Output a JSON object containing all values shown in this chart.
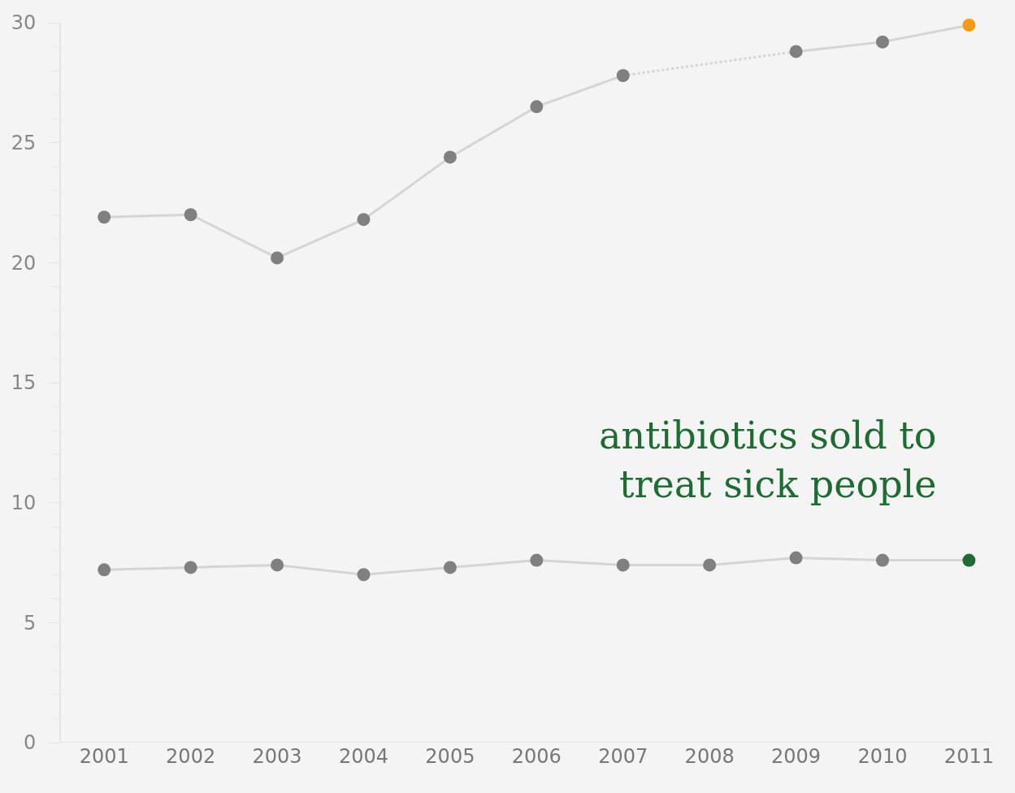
{
  "chart_data": {
    "type": "line",
    "categories": [
      "2001",
      "2002",
      "2003",
      "2004",
      "2005",
      "2006",
      "2007",
      "2008",
      "2009",
      "2010",
      "2011"
    ],
    "series": [
      {
        "color": "#808080",
        "colors": [
          "#808080",
          "#808080",
          "#808080",
          "#808080",
          "#808080",
          "#808080",
          "#808080",
          null,
          "#808080",
          "#808080",
          "#f39c12"
        ],
        "values": [
          21.9,
          22.0,
          20.2,
          21.8,
          24.4,
          26.5,
          27.8,
          null,
          28.8,
          29.2,
          29.9
        ]
      },
      {
        "name": "antibiotics sold to treat sick people",
        "color": "#808080",
        "colors": [
          "#808080",
          "#808080",
          "#808080",
          "#808080",
          "#808080",
          "#808080",
          "#808080",
          "#808080",
          "#808080",
          "#808080",
          "#1e6b34"
        ],
        "values": [
          7.2,
          7.3,
          7.4,
          7.0,
          7.3,
          7.6,
          7.4,
          7.4,
          7.7,
          7.6,
          7.6
        ]
      }
    ],
    "ylim": [
      0,
      30
    ],
    "yticks": [
      0,
      5,
      10,
      15,
      20,
      25,
      30
    ],
    "grid": false,
    "legend": false,
    "marker": "circle",
    "line_style": "solid"
  }
}
